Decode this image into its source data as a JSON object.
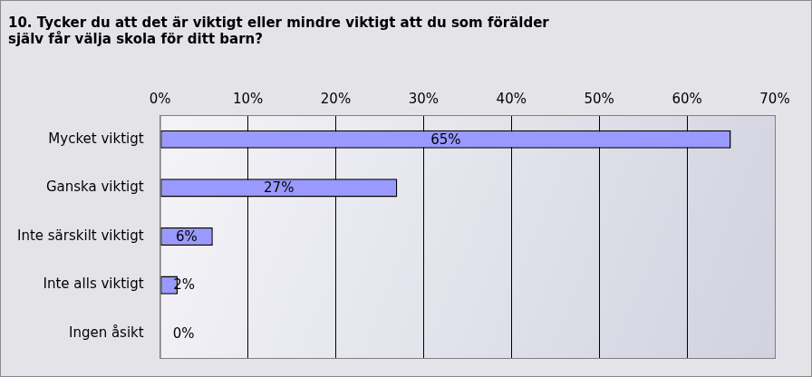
{
  "chart_data": {
    "type": "bar",
    "orientation": "horizontal",
    "title": [
      "10. Tycker du att det är viktigt eller mindre viktigt att du som förälder",
      "själv får välja skola för ditt barn?"
    ],
    "categories": [
      "Mycket viktigt",
      "Ganska viktigt",
      "Inte särskilt viktigt",
      "Inte alls viktigt",
      "Ingen åsikt"
    ],
    "values": [
      65,
      27,
      6,
      2,
      0
    ],
    "value_labels": [
      "65%",
      "27%",
      "6%",
      "2%",
      "0%"
    ],
    "data_labels": true,
    "color": "#9999ff",
    "xlim": [
      0,
      70
    ],
    "xticks": [
      {
        "value": 0,
        "label": "0%"
      },
      {
        "value": 10,
        "label": "10%"
      },
      {
        "value": 20,
        "label": "20%"
      },
      {
        "value": 30,
        "label": "30%"
      },
      {
        "value": 40,
        "label": "40%"
      },
      {
        "value": 50,
        "label": "50%"
      },
      {
        "value": 60,
        "label": "60%"
      },
      {
        "value": 70,
        "label": "70%"
      }
    ],
    "grid": true
  }
}
